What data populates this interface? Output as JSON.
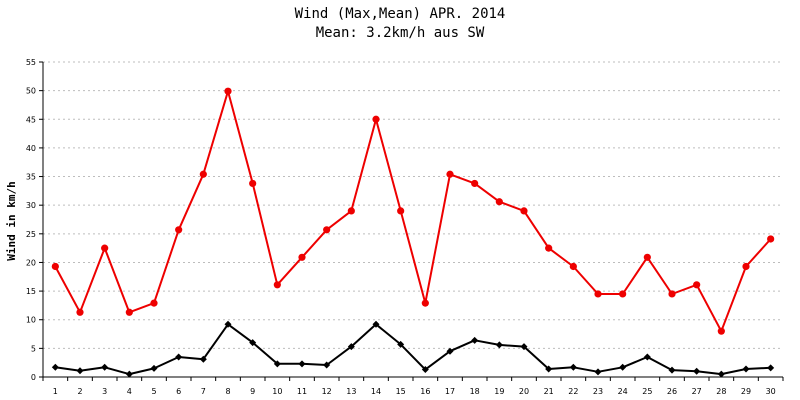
{
  "chart_data": {
    "type": "line",
    "title": "Wind (Max,Mean) APR. 2014",
    "subtitle": "Mean: 3.2km/h aus SW",
    "xlabel": "",
    "ylabel": "Wind in km/h",
    "ylim": [
      0,
      55
    ],
    "yticks": [
      "0",
      "5",
      "10",
      "15",
      "20",
      "25",
      "30",
      "35",
      "40",
      "45",
      "50",
      "55"
    ],
    "x": [
      "1",
      "2",
      "3",
      "4",
      "5",
      "6",
      "7",
      "8",
      "9",
      "10",
      "11",
      "12",
      "13",
      "14",
      "15",
      "16",
      "17",
      "18",
      "19",
      "20",
      "21",
      "22",
      "23",
      "24",
      "25",
      "26",
      "27",
      "28",
      "29",
      "30"
    ],
    "grid": true,
    "series": [
      {
        "name": "Max",
        "color": "#ee0000",
        "marker": "circle",
        "values": [
          19.3,
          11.3,
          22.5,
          11.3,
          12.9,
          25.7,
          35.4,
          49.9,
          33.8,
          16.1,
          20.9,
          25.7,
          29.0,
          45.0,
          29.0,
          12.9,
          35.4,
          33.8,
          30.6,
          29.0,
          22.5,
          19.3,
          14.5,
          14.5,
          20.9,
          14.5,
          16.1,
          8.0,
          19.3,
          24.1
        ]
      },
      {
        "name": "Mean",
        "color": "#000000",
        "marker": "diamond",
        "values": [
          1.7,
          1.1,
          1.7,
          0.5,
          1.5,
          3.5,
          3.1,
          9.2,
          6.0,
          2.3,
          2.3,
          2.1,
          5.3,
          9.2,
          5.7,
          1.3,
          4.5,
          6.4,
          5.6,
          5.3,
          1.4,
          1.7,
          0.9,
          1.7,
          3.5,
          1.2,
          1.0,
          0.5,
          1.4,
          1.6
        ]
      }
    ]
  }
}
